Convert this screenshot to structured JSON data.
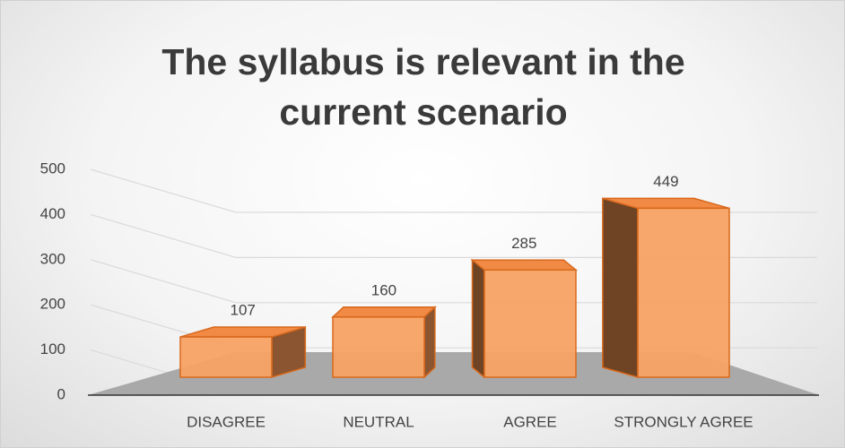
{
  "chart_data": {
    "type": "bar",
    "title": "The syllabus is relevant in the current scenario",
    "categories": [
      "DISAGREE",
      "NEUTRAL",
      "AGREE",
      "STRONGLY AGREE"
    ],
    "values": [
      107,
      160,
      285,
      449
    ],
    "color": "#f7a263",
    "ylim": [
      0,
      500
    ],
    "yticks": [
      0,
      100,
      200,
      300,
      400,
      500
    ],
    "grid": true
  }
}
